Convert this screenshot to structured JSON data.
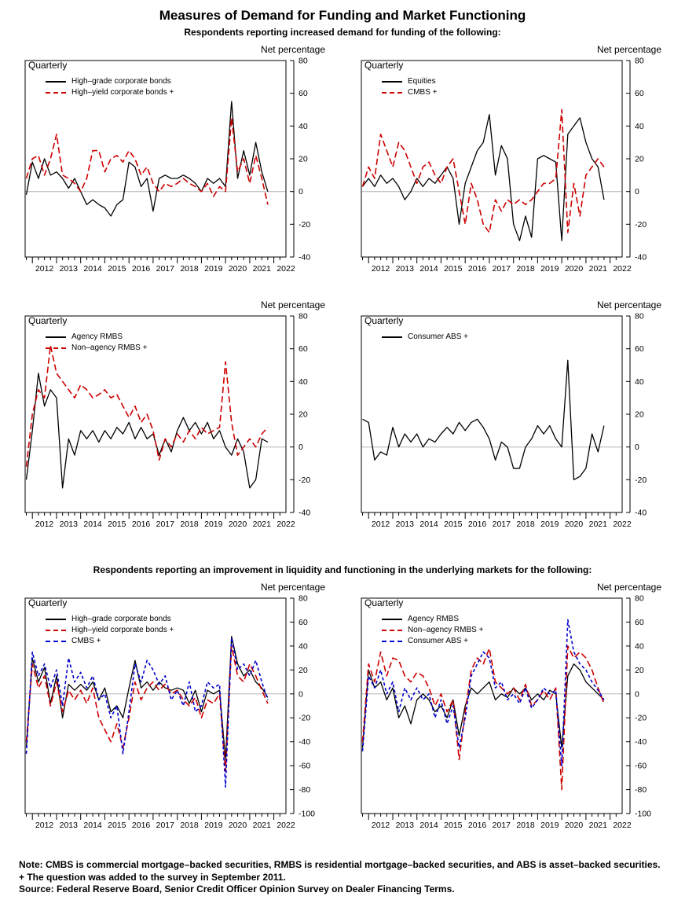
{
  "page": {
    "title": "Measures of Demand for Funding and Market Functioning",
    "subtitle_top": "Respondents reporting increased demand for funding of the following:",
    "subtitle_bottom": "Respondents reporting an improvement in liquidity and functioning in the underlying markets for the following:",
    "notes": {
      "note_label": "Note:",
      "note_text": " CMBS is commercial mortgage–backed securities, RMBS is residential mortgage–backed securities, and ABS is asset–backed securities.",
      "plus_line": "+ The question was added to the survey in September 2011.",
      "source_label": "Source:",
      "source_text": " Federal Reserve Board, Senior Credit Officer Opinion Survey on Dealer Financing Terms."
    },
    "colors": {
      "black": "#000000",
      "red": "#cc0000",
      "blue": "#0000cc",
      "zero_line": "#b3b3b3"
    }
  },
  "chart_data": [
    {
      "type": "line",
      "position": "top-left",
      "frequency_label": "Quarterly",
      "ylabel": "Net percentage",
      "ylim": [
        -40,
        80
      ],
      "ytick_step": 20,
      "xlim": [
        2011.7,
        2022.5
      ],
      "x_ticks": [
        2012,
        2013,
        2014,
        2015,
        2016,
        2017,
        2018,
        2019,
        2020,
        2021,
        2022
      ],
      "x_start": 2011.75,
      "x_step": 0.25,
      "grid": "zero-line-only",
      "legend_position": "top-left",
      "series": [
        {
          "name": "High–grade corporate bonds",
          "color": "#000000",
          "dash": "solid",
          "values": [
            -2,
            18,
            8,
            20,
            10,
            12,
            8,
            2,
            8,
            0,
            -8,
            -5,
            -8,
            -10,
            -15,
            -8,
            -5,
            18,
            15,
            3,
            8,
            -12,
            8,
            10,
            8,
            8,
            10,
            8,
            5,
            0,
            8,
            5,
            8,
            3,
            55,
            8,
            25,
            10,
            30,
            12,
            0
          ]
        },
        {
          "name": "High–yield corporate bonds +",
          "color": "#cc0000",
          "dash": "long-dash",
          "values": [
            8,
            20,
            22,
            10,
            20,
            35,
            10,
            8,
            5,
            0,
            8,
            25,
            25,
            12,
            20,
            22,
            18,
            25,
            20,
            10,
            15,
            5,
            0,
            5,
            3,
            5,
            8,
            5,
            3,
            0,
            5,
            -3,
            3,
            0,
            45,
            12,
            20,
            5,
            22,
            8,
            -8
          ]
        }
      ]
    },
    {
      "type": "line",
      "position": "top-right",
      "frequency_label": "Quarterly",
      "ylabel": "Net percentage",
      "ylim": [
        -40,
        80
      ],
      "ytick_step": 20,
      "xlim": [
        2011.7,
        2022.5
      ],
      "x_ticks": [
        2012,
        2013,
        2014,
        2015,
        2016,
        2017,
        2018,
        2019,
        2020,
        2021,
        2022
      ],
      "x_start": 2011.75,
      "x_step": 0.25,
      "grid": "zero-line-only",
      "legend_position": "top-left",
      "series": [
        {
          "name": "Equities",
          "color": "#000000",
          "dash": "solid",
          "values": [
            3,
            8,
            3,
            10,
            5,
            8,
            3,
            -5,
            0,
            8,
            3,
            8,
            5,
            10,
            15,
            8,
            -20,
            5,
            15,
            25,
            30,
            47,
            10,
            28,
            20,
            -20,
            -30,
            -15,
            -28,
            20,
            22,
            20,
            18,
            -30,
            35,
            40,
            45,
            30,
            20,
            15,
            -5
          ]
        },
        {
          "name": "CMBS +",
          "color": "#cc0000",
          "dash": "long-dash",
          "values": [
            3,
            15,
            8,
            35,
            25,
            15,
            30,
            25,
            15,
            5,
            15,
            18,
            10,
            5,
            15,
            20,
            0,
            -20,
            5,
            -5,
            -20,
            -25,
            -5,
            -12,
            -5,
            -8,
            -5,
            -8,
            -5,
            0,
            5,
            5,
            8,
            50,
            -25,
            5,
            -15,
            10,
            15,
            20,
            15
          ]
        }
      ]
    },
    {
      "type": "line",
      "position": "middle-left",
      "frequency_label": "Quarterly",
      "ylabel": "Net percentage",
      "ylim": [
        -40,
        80
      ],
      "ytick_step": 20,
      "xlim": [
        2011.7,
        2022.5
      ],
      "x_ticks": [
        2012,
        2013,
        2014,
        2015,
        2016,
        2017,
        2018,
        2019,
        2020,
        2021,
        2022
      ],
      "x_start": 2011.75,
      "x_step": 0.25,
      "grid": "zero-line-only",
      "legend_position": "top-left",
      "series": [
        {
          "name": "Agency RMBS",
          "color": "#000000",
          "dash": "solid",
          "values": [
            -20,
            10,
            45,
            25,
            35,
            30,
            -25,
            5,
            -5,
            10,
            5,
            10,
            3,
            10,
            5,
            12,
            8,
            15,
            5,
            12,
            5,
            8,
            -5,
            5,
            -3,
            10,
            18,
            10,
            15,
            8,
            15,
            5,
            10,
            0,
            -5,
            5,
            -3,
            -25,
            -20,
            5,
            3
          ]
        },
        {
          "name": "Non–agency RMBS +",
          "color": "#cc0000",
          "dash": "long-dash",
          "values": [
            -12,
            20,
            35,
            30,
            62,
            45,
            40,
            35,
            30,
            38,
            35,
            30,
            32,
            35,
            30,
            32,
            25,
            18,
            25,
            15,
            20,
            10,
            -8,
            5,
            0,
            8,
            3,
            10,
            5,
            12,
            8,
            10,
            12,
            52,
            15,
            -5,
            0,
            5,
            0,
            8,
            12
          ]
        }
      ]
    },
    {
      "type": "line",
      "position": "middle-right",
      "frequency_label": "Quarterly",
      "ylabel": "Net percentage",
      "ylim": [
        -40,
        80
      ],
      "ytick_step": 20,
      "xlim": [
        2011.7,
        2022.5
      ],
      "x_ticks": [
        2012,
        2013,
        2014,
        2015,
        2016,
        2017,
        2018,
        2019,
        2020,
        2021,
        2022
      ],
      "x_start": 2011.75,
      "x_step": 0.25,
      "grid": "zero-line-only",
      "legend_position": "top-left",
      "series": [
        {
          "name": "Consumer ABS +",
          "color": "#000000",
          "dash": "solid",
          "values": [
            17,
            15,
            -8,
            -3,
            -5,
            12,
            0,
            8,
            3,
            8,
            0,
            5,
            3,
            8,
            12,
            8,
            15,
            10,
            15,
            17,
            12,
            5,
            -8,
            3,
            0,
            -13,
            -13,
            0,
            5,
            13,
            8,
            13,
            5,
            0,
            53,
            -20,
            -18,
            -13,
            8,
            -3,
            13
          ]
        }
      ]
    },
    {
      "type": "line",
      "position": "bottom-left",
      "frequency_label": "Quarterly",
      "ylabel": "Net percentage",
      "ylim": [
        -100,
        80
      ],
      "ytick_step": 20,
      "xlim": [
        2011.7,
        2022.5
      ],
      "x_ticks": [
        2012,
        2013,
        2014,
        2015,
        2016,
        2017,
        2018,
        2019,
        2020,
        2021,
        2022
      ],
      "x_start": 2011.75,
      "x_step": 0.25,
      "grid": "zero-line-only",
      "legend_position": "top-left",
      "series": [
        {
          "name": "High–grade corporate bonds",
          "color": "#000000",
          "dash": "solid",
          "values": [
            -45,
            30,
            10,
            22,
            -8,
            15,
            -20,
            8,
            3,
            8,
            3,
            10,
            -5,
            5,
            -15,
            -10,
            -20,
            5,
            28,
            5,
            10,
            3,
            10,
            5,
            3,
            5,
            3,
            -8,
            3,
            -15,
            3,
            0,
            3,
            -55,
            48,
            25,
            15,
            20,
            10,
            5,
            -3
          ]
        },
        {
          "name": "High–yield corporate bonds +",
          "color": "#cc0000",
          "dash": "long-dash",
          "values": [
            -40,
            25,
            5,
            15,
            -10,
            10,
            -15,
            3,
            -5,
            3,
            -8,
            5,
            -20,
            -30,
            -40,
            -25,
            -45,
            -20,
            10,
            -5,
            5,
            10,
            3,
            8,
            0,
            3,
            -5,
            -10,
            -3,
            -20,
            -5,
            -8,
            0,
            -65,
            40,
            15,
            10,
            25,
            15,
            3,
            -8
          ]
        },
        {
          "name": "CMBS +",
          "color": "#0000cc",
          "dash": "short-dash",
          "values": [
            -50,
            35,
            15,
            25,
            5,
            20,
            -10,
            30,
            10,
            18,
            5,
            15,
            -5,
            0,
            -20,
            -10,
            -50,
            -15,
            25,
            10,
            28,
            20,
            8,
            15,
            -5,
            3,
            -10,
            10,
            -15,
            -10,
            10,
            5,
            8,
            -78,
            47,
            20,
            25,
            15,
            28,
            10,
            -5
          ]
        }
      ]
    },
    {
      "type": "line",
      "position": "bottom-right",
      "frequency_label": "Quarterly",
      "ylabel": "Net percentage",
      "ylim": [
        -100,
        80
      ],
      "ytick_step": 20,
      "xlim": [
        2011.7,
        2022.5
      ],
      "x_ticks": [
        2012,
        2013,
        2014,
        2015,
        2016,
        2017,
        2018,
        2019,
        2020,
        2021,
        2022
      ],
      "x_start": 2011.75,
      "x_step": 0.25,
      "grid": "zero-line-only",
      "legend_position": "top-left",
      "series": [
        {
          "name": "Agency RMBS",
          "color": "#000000",
          "dash": "solid",
          "values": [
            -45,
            20,
            5,
            10,
            -5,
            5,
            -20,
            -10,
            -25,
            -5,
            0,
            -5,
            -15,
            -10,
            -20,
            -5,
            -35,
            -10,
            5,
            0,
            5,
            10,
            -5,
            0,
            -3,
            5,
            0,
            5,
            -5,
            0,
            -5,
            3,
            0,
            -45,
            15,
            25,
            20,
            10,
            5,
            0,
            -5
          ]
        },
        {
          "name": "Non–agency RMBS +",
          "color": "#cc0000",
          "dash": "long-dash",
          "values": [
            -40,
            25,
            10,
            35,
            15,
            30,
            28,
            15,
            10,
            18,
            15,
            5,
            -10,
            0,
            -15,
            -5,
            -55,
            -15,
            20,
            30,
            25,
            38,
            10,
            5,
            0,
            5,
            -5,
            8,
            -10,
            -5,
            3,
            -5,
            5,
            -80,
            40,
            30,
            35,
            30,
            20,
            5,
            -8
          ]
        },
        {
          "name": "Consumer ABS +",
          "color": "#0000cc",
          "dash": "short-dash",
          "values": [
            -48,
            15,
            5,
            20,
            0,
            10,
            -15,
            5,
            -5,
            5,
            -5,
            0,
            -20,
            -5,
            -25,
            -10,
            -45,
            -20,
            15,
            25,
            35,
            30,
            5,
            10,
            -5,
            0,
            -8,
            5,
            -12,
            -5,
            5,
            0,
            3,
            -60,
            62,
            35,
            25,
            20,
            10,
            3,
            -5
          ]
        }
      ]
    }
  ]
}
